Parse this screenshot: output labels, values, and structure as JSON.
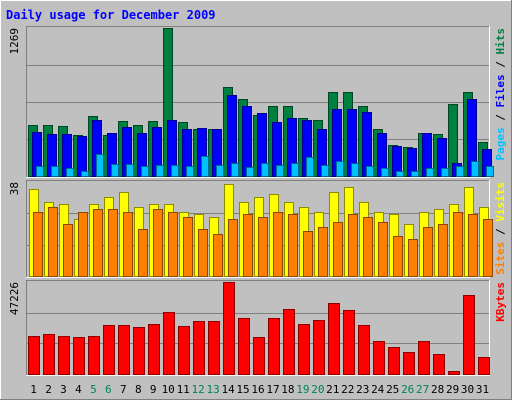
{
  "chart_data": {
    "type": "bar",
    "title": "Daily usage for December 2009",
    "x": [
      "1",
      "2",
      "3",
      "4",
      "5",
      "6",
      "7",
      "8",
      "9",
      "10",
      "11",
      "12",
      "13",
      "14",
      "15",
      "16",
      "17",
      "18",
      "19",
      "20",
      "21",
      "22",
      "23",
      "24",
      "25",
      "26",
      "27",
      "28",
      "29",
      "30",
      "31"
    ],
    "weekend_days": [
      5,
      6,
      12,
      13,
      19,
      20,
      26,
      27
    ],
    "panels": [
      {
        "name": "top",
        "ymax": 1269,
        "ymax_label": "1269",
        "legend": [
          {
            "text": "Pages",
            "color": "#00c0ff"
          },
          {
            "text": " / ",
            "color": "#000000"
          },
          {
            "text": "Files",
            "color": "#0000ff"
          },
          {
            "text": " / ",
            "color": "#000000"
          },
          {
            "text": "Hits",
            "color": "#008040"
          }
        ],
        "series": [
          {
            "name": "Hits",
            "color": "#008040",
            "values": [
              441,
              441,
              432,
              348,
              516,
              354,
              475,
              440,
              475,
              1269,
              467,
              406,
              406,
              761,
              664,
              526,
              597,
              597,
              500,
              483,
              722,
              722,
              603,
              399,
              262,
              249,
              371,
              357,
              620,
              722,
              295
            ]
          },
          {
            "name": "Files",
            "color": "#0000ff",
            "values": [
              374,
              356,
              356,
              339,
              483,
              366,
              424,
              372,
              424,
              483,
              403,
              415,
              406,
              693,
              601,
              543,
              466,
              500,
              483,
              406,
              576,
              576,
              552,
              365,
              256,
              236,
              365,
              330,
              114,
              662,
              229
            ]
          },
          {
            "name": "Pages",
            "color": "#00c0ff",
            "values": [
              85,
              85,
              68,
              42,
              186,
              102,
              102,
              85,
              93,
              93,
              85,
              169,
              93,
              110,
              76,
              110,
              93,
              110,
              161,
              93,
              127,
              110,
              85,
              68,
              42,
              42,
              68,
              68,
              85,
              127,
              85
            ]
          }
        ]
      },
      {
        "name": "middle",
        "ymax": 38,
        "ymax_label": "38",
        "legend": [
          {
            "text": "Sites",
            "color": "#ff8000"
          },
          {
            "text": " / ",
            "color": "#000000"
          },
          {
            "text": "Visits",
            "color": "#ffff00"
          }
        ],
        "series": [
          {
            "name": "Visits",
            "color": "#ffff00",
            "values": [
              35,
              30,
              29,
              23,
              29,
              32,
              34,
              28,
              29,
              29,
              26,
              25,
              24,
              37,
              30,
              32,
              33,
              30,
              28,
              26,
              34,
              36,
              30,
              26,
              25,
              21,
              26,
              27,
              29,
              36,
              28
            ]
          },
          {
            "name": "Sites",
            "color": "#ff8000",
            "values": [
              26,
              28,
              21,
              26,
              27,
              27,
              26,
              19,
              27,
              26,
              24,
              19,
              17,
              23,
              25,
              24,
              26,
              25,
              18,
              20,
              22,
              25,
              24,
              22,
              16,
              15,
              20,
              21,
              26,
              25,
              23
            ]
          }
        ]
      },
      {
        "name": "bottom",
        "ymax": 47226,
        "ymax_label": "47226",
        "legend": [
          {
            "text": "KBytes",
            "color": "#ff0000"
          }
        ],
        "series": [
          {
            "name": "KBytes",
            "color": "#ff0000",
            "values": [
              19300,
              20300,
              19400,
              19100,
              19700,
              25100,
              24900,
              24000,
              25500,
              31700,
              24700,
              27300,
              27000,
              47226,
              28800,
              18800,
              28700,
              33200,
              25600,
              27700,
              36700,
              32800,
              25000,
              17000,
              14000,
              11300,
              17000,
              10500,
              1500,
              40800,
              8500
            ]
          }
        ]
      }
    ]
  }
}
